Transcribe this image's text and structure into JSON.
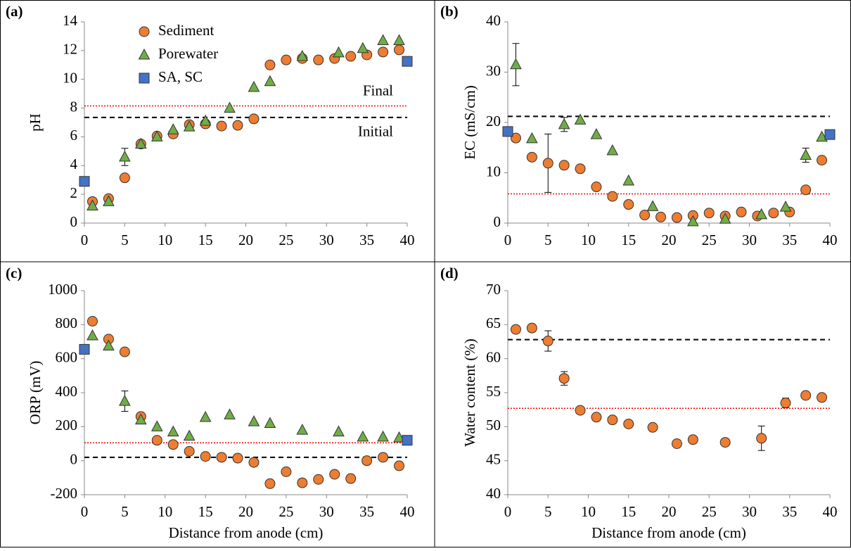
{
  "chart_data": [
    {
      "type": "scatter",
      "panel_label": "(a)",
      "ylabel": "pH",
      "xlim": [
        0,
        40
      ],
      "xticks": [
        0,
        5,
        10,
        15,
        20,
        25,
        30,
        35,
        40
      ],
      "ylim": [
        0,
        14
      ],
      "yticks": [
        0,
        2,
        4,
        6,
        8,
        10,
        12,
        14
      ],
      "legend": true,
      "lines": [
        {
          "value": 8.15,
          "color": "#ff0000",
          "style": "dotted",
          "label": "Final"
        },
        {
          "value": 7.35,
          "color": "#000000",
          "style": "dashed",
          "label": "Initial"
        }
      ],
      "series": [
        {
          "name": "Sediment",
          "marker": "circle",
          "color": "#ed7d31",
          "x": [
            1,
            3,
            5,
            7,
            9,
            11,
            13,
            15,
            17,
            19,
            21,
            23,
            25,
            27,
            29,
            31,
            33,
            35,
            37,
            39
          ],
          "values": [
            1.5,
            1.7,
            3.15,
            5.5,
            6.05,
            6.2,
            6.85,
            6.9,
            6.75,
            6.8,
            7.25,
            11.0,
            11.35,
            11.45,
            11.35,
            11.45,
            11.6,
            11.7,
            11.9,
            12.05
          ]
        },
        {
          "name": "Porewater",
          "marker": "triangle",
          "color": "#70ad47",
          "x": [
            1,
            3,
            5,
            7,
            9,
            11,
            13,
            15,
            18,
            21,
            23,
            27,
            31.5,
            34.5,
            37,
            39
          ],
          "values": [
            1.2,
            1.5,
            4.6,
            5.5,
            6.0,
            6.5,
            6.7,
            7.1,
            8.0,
            9.45,
            9.85,
            11.6,
            11.85,
            12.15,
            12.7,
            12.7
          ],
          "errors": [
            null,
            null,
            0.6,
            null,
            null,
            null,
            null,
            null,
            null,
            null,
            null,
            null,
            null,
            null,
            null,
            null
          ]
        },
        {
          "name": "SA, SC",
          "marker": "square",
          "color": "#4472c4",
          "x": [
            0,
            40
          ],
          "values": [
            2.9,
            11.25
          ]
        }
      ]
    },
    {
      "type": "scatter",
      "panel_label": "(b)",
      "ylabel": "EC (mS/cm)",
      "xlim": [
        0,
        40
      ],
      "xticks": [
        0,
        5,
        10,
        15,
        20,
        25,
        30,
        35,
        40
      ],
      "ylim": [
        0,
        40
      ],
      "yticks": [
        0,
        10,
        20,
        30,
        40
      ],
      "lines": [
        {
          "value": 5.8,
          "color": "#ff0000",
          "style": "dotted"
        },
        {
          "value": 21.2,
          "color": "#000000",
          "style": "dashed"
        }
      ],
      "series": [
        {
          "marker": "circle",
          "color": "#ed7d31",
          "x": [
            1,
            3,
            5,
            7,
            9,
            11,
            13,
            15,
            17,
            19,
            21,
            23,
            25,
            27,
            29,
            31,
            33,
            35,
            37,
            39
          ],
          "values": [
            16.9,
            13.1,
            11.9,
            11.5,
            10.8,
            7.2,
            5.3,
            3.7,
            1.6,
            1.2,
            1.1,
            1.5,
            2.0,
            1.4,
            2.2,
            1.4,
            2.0,
            2.2,
            6.6,
            12.5
          ],
          "errors": [
            null,
            null,
            5.8,
            null,
            null,
            null,
            null,
            null,
            null,
            null,
            null,
            null,
            null,
            null,
            null,
            null,
            null,
            null,
            null,
            null
          ]
        },
        {
          "marker": "triangle",
          "color": "#70ad47",
          "x": [
            1,
            3,
            7,
            9,
            11,
            13,
            15,
            18,
            23,
            27,
            31.5,
            34.5,
            37,
            39
          ],
          "values": [
            31.5,
            16.8,
            19.6,
            20.5,
            17.6,
            14.4,
            8.4,
            3.3,
            0.3,
            0.8,
            1.7,
            3.2,
            13.5,
            17.1
          ],
          "errors": [
            4.2,
            null,
            1.4,
            null,
            null,
            null,
            null,
            null,
            null,
            null,
            null,
            null,
            1.4,
            null
          ]
        },
        {
          "marker": "square",
          "color": "#4472c4",
          "x": [
            0,
            40
          ],
          "values": [
            18.2,
            17.6
          ]
        }
      ]
    },
    {
      "type": "scatter",
      "panel_label": "(c)",
      "ylabel": "ORP (mV)",
      "xlabel": "Distance from anode (cm)",
      "xlim": [
        0,
        40
      ],
      "xticks": [
        0,
        5,
        10,
        15,
        20,
        25,
        30,
        35,
        40
      ],
      "ylim": [
        -200,
        1000
      ],
      "yticks": [
        -200,
        0,
        200,
        400,
        600,
        800,
        1000
      ],
      "lines": [
        {
          "value": 105,
          "color": "#ff0000",
          "style": "dotted"
        },
        {
          "value": 20,
          "color": "#000000",
          "style": "dashed"
        }
      ],
      "series": [
        {
          "marker": "circle",
          "color": "#ed7d31",
          "x": [
            1,
            3,
            5,
            7,
            9,
            11,
            13,
            15,
            17,
            19,
            21,
            23,
            25,
            27,
            29,
            31,
            33,
            35,
            37,
            39
          ],
          "values": [
            820,
            715,
            640,
            260,
            120,
            95,
            55,
            25,
            20,
            15,
            -10,
            -135,
            -65,
            -130,
            -110,
            -80,
            -105,
            0,
            20,
            -30
          ]
        },
        {
          "marker": "triangle",
          "color": "#70ad47",
          "x": [
            1,
            3,
            5,
            7,
            9,
            11,
            13,
            15,
            18,
            21,
            23,
            27,
            31.5,
            34.5,
            37,
            39
          ],
          "values": [
            735,
            675,
            350,
            240,
            200,
            170,
            145,
            255,
            270,
            230,
            220,
            180,
            170,
            140,
            140,
            135
          ],
          "errors": [
            null,
            null,
            60,
            null,
            null,
            null,
            null,
            null,
            null,
            null,
            null,
            null,
            null,
            null,
            null,
            null
          ]
        },
        {
          "marker": "square",
          "color": "#4472c4",
          "x": [
            0,
            40
          ],
          "values": [
            655,
            120
          ]
        }
      ]
    },
    {
      "type": "scatter",
      "panel_label": "(d)",
      "ylabel": "Water content (%)",
      "xlabel": "Distance from anode (cm)",
      "xlim": [
        0,
        40
      ],
      "xticks": [
        0,
        5,
        10,
        15,
        20,
        25,
        30,
        35,
        40
      ],
      "ylim": [
        40,
        70
      ],
      "yticks": [
        40,
        45,
        50,
        55,
        60,
        65,
        70
      ],
      "lines": [
        {
          "value": 52.7,
          "color": "#ff0000",
          "style": "dotted"
        },
        {
          "value": 62.8,
          "color": "#000000",
          "style": "dashed"
        }
      ],
      "series": [
        {
          "marker": "circle",
          "color": "#ed7d31",
          "x": [
            1,
            3,
            5,
            7,
            9,
            11,
            13,
            15,
            18,
            21,
            23,
            27,
            31.5,
            34.5,
            37,
            39
          ],
          "values": [
            64.3,
            64.5,
            62.6,
            57.1,
            52.4,
            51.4,
            51.0,
            50.4,
            49.9,
            47.5,
            48.1,
            47.7,
            48.3,
            53.5,
            54.6,
            54.3
          ],
          "errors": [
            null,
            null,
            1.5,
            1.0,
            null,
            null,
            null,
            null,
            null,
            null,
            null,
            null,
            1.8,
            0.7,
            null,
            null
          ]
        }
      ]
    }
  ]
}
